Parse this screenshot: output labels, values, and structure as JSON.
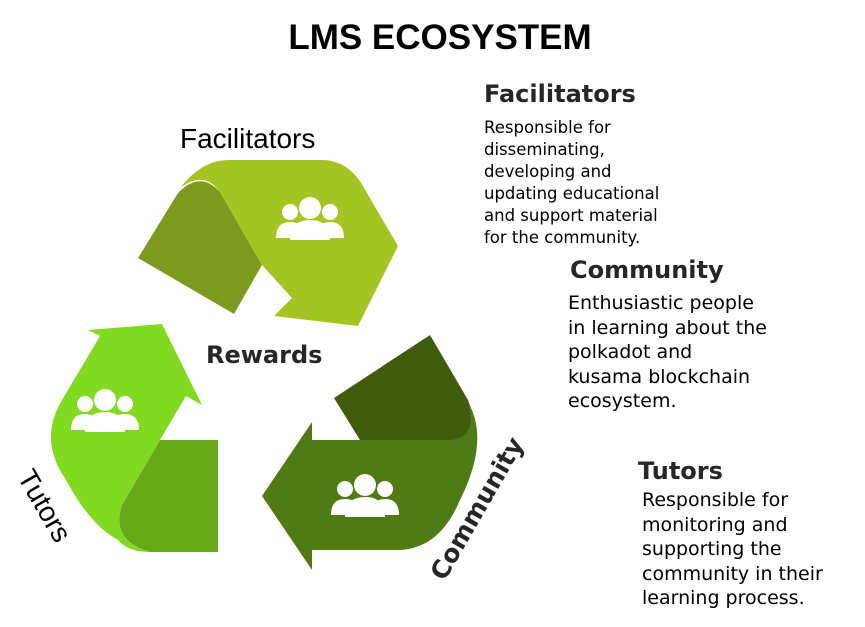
{
  "title": "LMS ECOSYSTEM",
  "cycle": {
    "center_label": "Rewards",
    "segments": [
      {
        "label": "Facilitators",
        "color": "#a4c424",
        "shade": "#7e9a1e",
        "icon": "people-icon"
      },
      {
        "label": "Community",
        "color": "#507a14",
        "shade": "#3e5c0c",
        "icon": "people-icon"
      },
      {
        "label": "Tutors",
        "color": "#82d921",
        "shade": "#66aa1a",
        "icon": "people-icon"
      }
    ]
  },
  "roles": [
    {
      "heading": "Facilitators",
      "description": [
        "Responsible for",
        "disseminating,",
        "developing and",
        "updating educational",
        "and support material",
        "for the community."
      ]
    },
    {
      "heading": "Community",
      "description": [
        "Enthusiastic people",
        "in learning about the",
        "polkadot and",
        "kusama blockchain",
        "ecosystem."
      ]
    },
    {
      "heading": "Tutors",
      "description": [
        "Responsible for",
        "monitoring and",
        "supporting the",
        "community in their",
        "learning process."
      ]
    }
  ]
}
